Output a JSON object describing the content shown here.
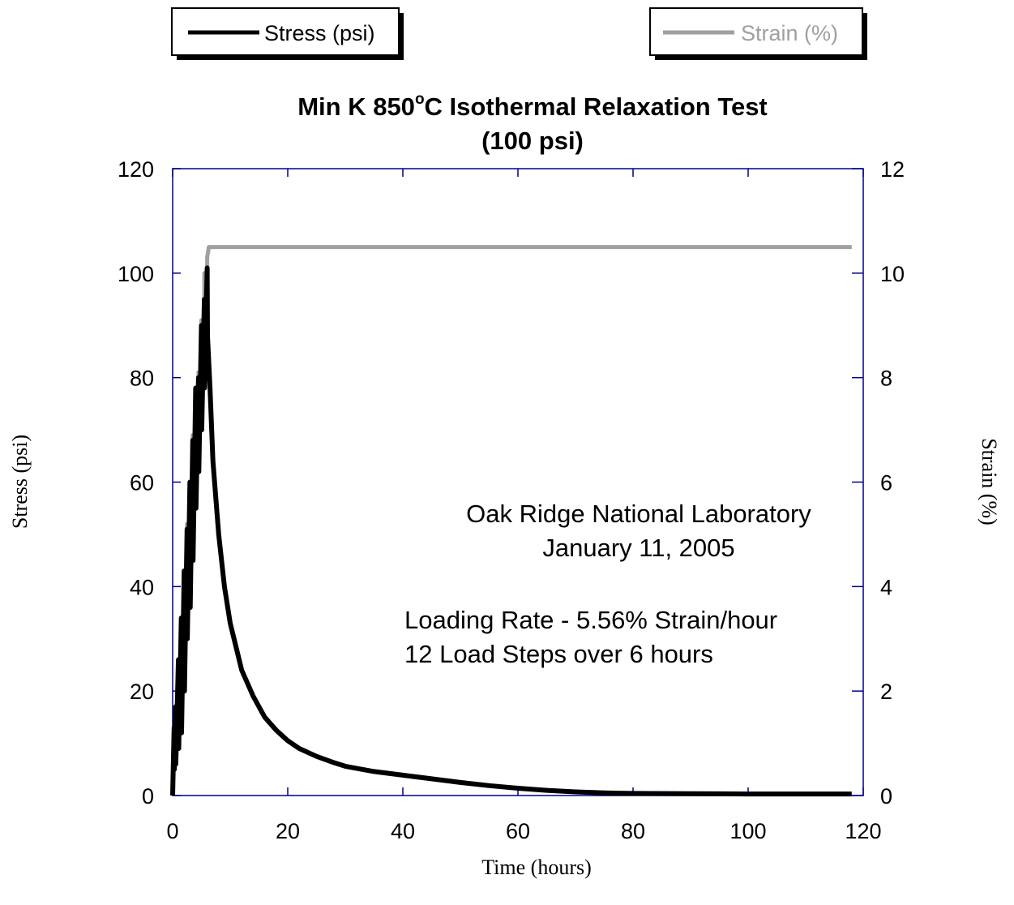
{
  "chart_data": {
    "type": "line",
    "title_main": "Min K 850",
    "title_degree": "o",
    "title_suffix": "C Isothermal Relaxation Test",
    "subtitle": "(100 psi)",
    "xlabel": "Time (hours)",
    "ylabel": "Stress (psi)",
    "y2label": "Strain (%)",
    "xlim": [
      0,
      120
    ],
    "ylim": [
      0,
      120
    ],
    "y2lim": [
      0,
      12
    ],
    "x_ticks": [
      "0",
      "20",
      "40",
      "60",
      "80",
      "100",
      "120"
    ],
    "y_ticks": [
      "0",
      "20",
      "40",
      "60",
      "80",
      "100",
      "120"
    ],
    "y2_ticks": [
      "0",
      "2",
      "4",
      "6",
      "8",
      "10",
      "12"
    ],
    "grid": false,
    "legend_placement": "top, outside plot (two boxes)",
    "annotations": [
      "Oak Ridge National Laboratory",
      "January 11, 2005",
      "Loading Rate - 5.56% Strain/hour",
      "12 Load Steps over 6 hours"
    ],
    "colors": {
      "stress": "#000000",
      "strain": "#a0a0a0",
      "axes": "#00008b",
      "legend_strain_text": "#a0a0a0"
    },
    "series": [
      {
        "name": "Stress (psi)",
        "axis": "left",
        "x": [
          0,
          0.25,
          0.3,
          0.5,
          0.55,
          1.0,
          1.05,
          1.5,
          1.55,
          2.0,
          2.05,
          2.5,
          2.55,
          3.0,
          3.05,
          3.5,
          3.55,
          4.0,
          4.05,
          4.5,
          4.55,
          5.0,
          5.05,
          5.5,
          5.55,
          6.0,
          6.05,
          6.5,
          7,
          8,
          9,
          10,
          12,
          14,
          16,
          18,
          20,
          22,
          25,
          28,
          30,
          35,
          40,
          45,
          50,
          55,
          60,
          65,
          70,
          75,
          80,
          90,
          100,
          110,
          118
        ],
        "values": [
          0,
          13,
          5,
          17,
          6,
          26,
          9,
          34,
          12,
          43,
          20,
          51,
          30,
          60,
          36,
          68,
          45,
          78,
          55,
          80,
          62,
          90,
          70,
          95,
          78,
          101,
          88,
          78,
          64,
          50,
          40,
          33,
          24,
          19,
          15,
          12.5,
          10.5,
          9,
          7.5,
          6.3,
          5.6,
          4.6,
          3.9,
          3.2,
          2.5,
          1.9,
          1.4,
          1.0,
          0.7,
          0.5,
          0.4,
          0.35,
          0.3,
          0.3,
          0.3
        ]
      },
      {
        "name": "Strain (%)",
        "axis": "right",
        "x": [
          0,
          0.5,
          0.5,
          1.0,
          1.0,
          1.5,
          1.5,
          2.0,
          2.0,
          2.5,
          2.5,
          3.0,
          3.0,
          3.5,
          3.5,
          4.0,
          4.0,
          4.5,
          4.5,
          5.0,
          5.0,
          5.5,
          5.5,
          6.0,
          6.0,
          6.3,
          118
        ],
        "values": [
          0.7,
          0.7,
          1.7,
          1.7,
          2.6,
          2.6,
          3.4,
          3.4,
          4.3,
          4.3,
          5.2,
          5.2,
          6.0,
          6.0,
          6.9,
          6.9,
          7.7,
          7.7,
          8.1,
          8.1,
          9.1,
          9.1,
          10.0,
          10.0,
          10.3,
          10.5,
          10.5
        ]
      }
    ]
  }
}
